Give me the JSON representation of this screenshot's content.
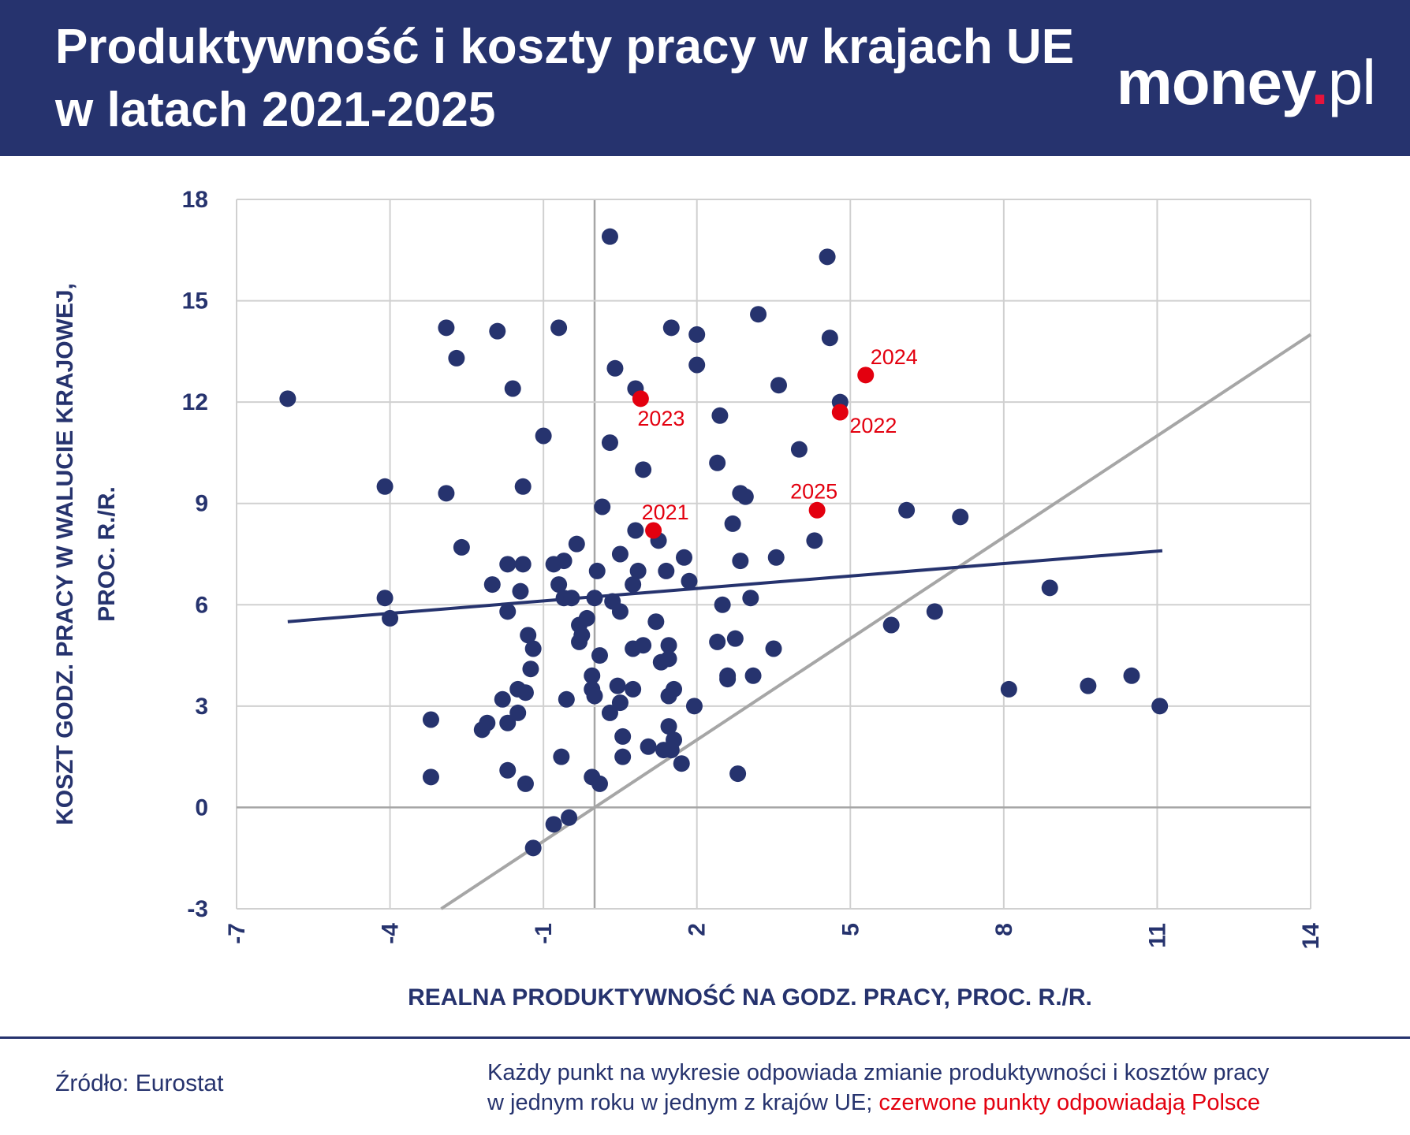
{
  "header": {
    "title": "Produktywność i koszty pracy w krajach UE w latach 2021-2025",
    "logo_main": "money",
    "logo_dot": ".",
    "logo_suffix": "pl"
  },
  "colors": {
    "header_bg": "#26336e",
    "points": "#26336e",
    "poland_points": "#e3000f",
    "trend_line": "#26336e",
    "diagonal_line": "#a6a6a6",
    "grid": "#d0d0d0"
  },
  "chart_data": {
    "type": "scatter",
    "xlabel": "REALNA PRODUKTYWNOŚĆ NA GODZ. PRACY, PROC. R./R.",
    "ylabel_line1": "KOSZT GODZ. PRACY W WALUCIE KRAJOWEJ,",
    "ylabel_line2": "PROC. R./R.",
    "xlim": [
      -7,
      14
    ],
    "ylim": [
      -3,
      18
    ],
    "xticks": [
      -7,
      -4,
      -1,
      2,
      5,
      8,
      11,
      14
    ],
    "yticks": [
      -3,
      0,
      3,
      6,
      9,
      12,
      15,
      18
    ],
    "grid": true,
    "series": [
      {
        "points": [
          [
            -6.0,
            12.1
          ],
          [
            -4.1,
            9.5
          ],
          [
            -4.1,
            6.2
          ],
          [
            -4.0,
            5.6
          ],
          [
            -3.2,
            2.6
          ],
          [
            -3.2,
            0.9
          ],
          [
            -2.9,
            14.2
          ],
          [
            -2.9,
            9.3
          ],
          [
            -2.7,
            13.3
          ],
          [
            -2.6,
            7.7
          ],
          [
            -2.2,
            2.3
          ],
          [
            -2.1,
            2.5
          ],
          [
            -2.0,
            6.6
          ],
          [
            -1.9,
            14.1
          ],
          [
            -1.8,
            3.2
          ],
          [
            -1.7,
            2.5
          ],
          [
            -1.7,
            1.1
          ],
          [
            -1.7,
            7.2
          ],
          [
            -1.7,
            5.8
          ],
          [
            -1.6,
            12.4
          ],
          [
            -1.5,
            3.5
          ],
          [
            -1.5,
            2.8
          ],
          [
            -1.45,
            6.4
          ],
          [
            -1.4,
            7.2
          ],
          [
            -1.4,
            9.5
          ],
          [
            -1.35,
            3.4
          ],
          [
            -1.35,
            0.7
          ],
          [
            -1.3,
            5.1
          ],
          [
            -1.25,
            4.1
          ],
          [
            -1.2,
            4.7
          ],
          [
            -1.2,
            -1.2
          ],
          [
            -1.0,
            11.0
          ],
          [
            -0.8,
            7.2
          ],
          [
            -0.8,
            -0.5
          ],
          [
            -0.7,
            14.2
          ],
          [
            -0.7,
            6.6
          ],
          [
            -0.65,
            1.5
          ],
          [
            -0.6,
            7.3
          ],
          [
            -0.6,
            6.2
          ],
          [
            -0.55,
            3.2
          ],
          [
            -0.5,
            -0.3
          ],
          [
            -0.45,
            6.2
          ],
          [
            -0.35,
            7.8
          ],
          [
            -0.3,
            5.4
          ],
          [
            -0.3,
            4.9
          ],
          [
            -0.25,
            5.1
          ],
          [
            -0.15,
            5.6
          ],
          [
            -0.05,
            0.9
          ],
          [
            -0.05,
            3.9
          ],
          [
            -0.05,
            3.5
          ],
          [
            0.0,
            3.3
          ],
          [
            0.0,
            6.2
          ],
          [
            0.05,
            7.0
          ],
          [
            0.1,
            4.5
          ],
          [
            0.1,
            0.7
          ],
          [
            0.15,
            8.9
          ],
          [
            0.3,
            16.9
          ],
          [
            0.3,
            10.8
          ],
          [
            0.3,
            2.8
          ],
          [
            0.35,
            6.1
          ],
          [
            0.4,
            13.0
          ],
          [
            0.45,
            3.6
          ],
          [
            0.5,
            7.5
          ],
          [
            0.5,
            5.8
          ],
          [
            0.5,
            3.1
          ],
          [
            0.55,
            2.1
          ],
          [
            0.55,
            1.5
          ],
          [
            0.75,
            6.6
          ],
          [
            0.75,
            4.7
          ],
          [
            0.75,
            3.5
          ],
          [
            0.8,
            8.2
          ],
          [
            0.8,
            12.4
          ],
          [
            0.85,
            7.0
          ],
          [
            0.95,
            10.0
          ],
          [
            0.95,
            4.8
          ],
          [
            1.05,
            1.8
          ],
          [
            1.2,
            5.5
          ],
          [
            1.25,
            7.9
          ],
          [
            1.3,
            4.3
          ],
          [
            1.35,
            1.7
          ],
          [
            1.4,
            7.0
          ],
          [
            1.45,
            4.8
          ],
          [
            1.45,
            4.4
          ],
          [
            1.45,
            3.3
          ],
          [
            1.45,
            2.4
          ],
          [
            1.5,
            14.2
          ],
          [
            1.5,
            1.7
          ],
          [
            1.55,
            3.5
          ],
          [
            1.55,
            2.0
          ],
          [
            1.7,
            1.3
          ],
          [
            1.75,
            7.4
          ],
          [
            1.85,
            6.7
          ],
          [
            1.95,
            3.0
          ],
          [
            2.0,
            14.0
          ],
          [
            2.0,
            13.1
          ],
          [
            2.4,
            10.2
          ],
          [
            2.4,
            4.9
          ],
          [
            2.45,
            11.6
          ],
          [
            2.5,
            6.0
          ],
          [
            2.6,
            3.9
          ],
          [
            2.6,
            3.8
          ],
          [
            2.7,
            8.4
          ],
          [
            2.75,
            5.0
          ],
          [
            2.8,
            1.0
          ],
          [
            2.85,
            9.3
          ],
          [
            2.85,
            7.3
          ],
          [
            2.95,
            9.2
          ],
          [
            3.05,
            6.2
          ],
          [
            3.1,
            3.9
          ],
          [
            3.2,
            14.6
          ],
          [
            3.5,
            4.7
          ],
          [
            3.55,
            7.4
          ],
          [
            3.6,
            12.5
          ],
          [
            4.0,
            10.6
          ],
          [
            4.3,
            7.9
          ],
          [
            4.55,
            16.3
          ],
          [
            4.6,
            13.9
          ],
          [
            4.8,
            12.0
          ],
          [
            5.8,
            5.4
          ],
          [
            6.1,
            8.8
          ],
          [
            6.65,
            5.8
          ],
          [
            7.15,
            8.6
          ],
          [
            8.1,
            3.5
          ],
          [
            8.9,
            6.5
          ],
          [
            9.65,
            3.6
          ],
          [
            10.5,
            3.9
          ],
          [
            11.05,
            3.0
          ]
        ]
      },
      {
        "points": [
          {
            "x": 1.15,
            "y": 8.2,
            "label": "2021"
          },
          {
            "x": 4.8,
            "y": 11.7,
            "label": "2022"
          },
          {
            "x": 0.9,
            "y": 12.1,
            "label": "2023"
          },
          {
            "x": 5.3,
            "y": 12.8,
            "label": "2024"
          },
          {
            "x": 4.35,
            "y": 8.8,
            "label": "2025"
          }
        ]
      }
    ],
    "trend_line": [
      [
        -6.0,
        5.5
      ],
      [
        11.1,
        7.6
      ]
    ],
    "diagonal_line": [
      [
        -3.0,
        -3.0
      ],
      [
        14.0,
        14.0
      ]
    ]
  },
  "footer": {
    "source": "Źródło: Eurostat",
    "note_line1": "Każdy punkt na wykresie odpowiada zmianie produktywności i kosztów pracy",
    "note_line2": "w jednym roku w jednym z krajów UE;",
    "note_red": "czerwone punkty odpowiadają Polsce"
  }
}
